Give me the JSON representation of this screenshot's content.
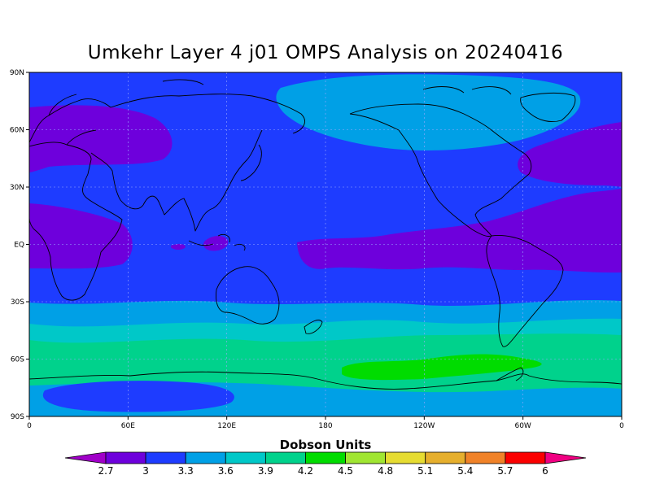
{
  "title": "Umkehr Layer 4 j01 OMPS Analysis on 20240416",
  "colorbar": {
    "title": "Dobson Units",
    "labels": [
      "2.7",
      "3",
      "3.3",
      "3.6",
      "3.9",
      "4.2",
      "4.5",
      "4.8",
      "5.1",
      "5.4",
      "5.7",
      "6"
    ],
    "colors": [
      "#a000c8",
      "#6e00dc",
      "#1e3cff",
      "#00a0e6",
      "#00c8c8",
      "#00d28c",
      "#00dc00",
      "#a0e632",
      "#e6dc32",
      "#e6af2d",
      "#f08228",
      "#fa0000",
      "#f00082"
    ]
  },
  "map": {
    "x_ticks": [
      "0",
      "60E",
      "120E",
      "180",
      "120W",
      "60W",
      "0"
    ],
    "y_ticks": [
      "90N",
      "60N",
      "30N",
      "EQ",
      "30S",
      "60S",
      "90S"
    ],
    "background_color": "#1e3cff"
  }
}
